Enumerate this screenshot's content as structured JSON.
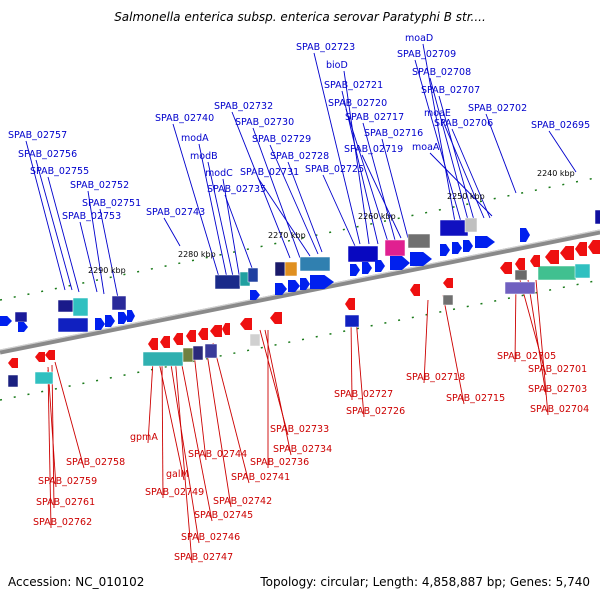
{
  "title": "Salmonella enterica subsp. enterica serovar Paratyphi B str....",
  "footer": {
    "accession": "Accession: NC_010102",
    "topology": "Topology: circular; Length: 4,858,887 bp; Genes: 5,740"
  },
  "colors": {
    "forward_label": "#0000cc",
    "reverse_label": "#cc0000",
    "forward_arrow": "#0020ee",
    "reverse_arrow": "#ee1010",
    "backbone": "#808080",
    "tick": "#1a7a1a"
  },
  "ticks": [
    "2240 kbp",
    "2250 kbp",
    "2260 kbp",
    "2270 kbp",
    "2280 kbp",
    "2290 kbp"
  ],
  "forward_genes": [
    "SPAB_02757",
    "SPAB_02756",
    "SPAB_02755",
    "SPAB_02752",
    "SPAB_02751",
    "SPAB_02753",
    "SPAB_02743",
    "modA",
    "modB",
    "modC",
    "SPAB_02740",
    "SPAB_02735",
    "SPAB_02732",
    "SPAB_02730",
    "SPAB_02731",
    "SPAB_02729",
    "SPAB_02728",
    "SPAB_02725",
    "SPAB_02723",
    "bioD",
    "SPAB_02721",
    "SPAB_02720",
    "SPAB_02717",
    "SPAB_02719",
    "SPAB_02716",
    "moaD",
    "SPAB_02709",
    "SPAB_02708",
    "SPAB_02707",
    "moaE",
    "moaA",
    "SPAB_02706",
    "SPAB_02702",
    "SPAB_02695"
  ],
  "reverse_genes": [
    "SPAB_02758",
    "SPAB_02759",
    "SPAB_02761",
    "SPAB_02762",
    "gpmA",
    "galM",
    "SPAB_02749",
    "SPAB_02745",
    "SPAB_02746",
    "SPAB_02747",
    "SPAB_02744",
    "SPAB_02742",
    "SPAB_02741",
    "SPAB_02733",
    "SPAB_02734",
    "SPAB_02736",
    "SPAB_02727",
    "SPAB_02726",
    "SPAB_02718",
    "SPAB_02715",
    "SPAB_02705",
    "SPAB_02701",
    "SPAB_02703",
    "SPAB_02704"
  ]
}
